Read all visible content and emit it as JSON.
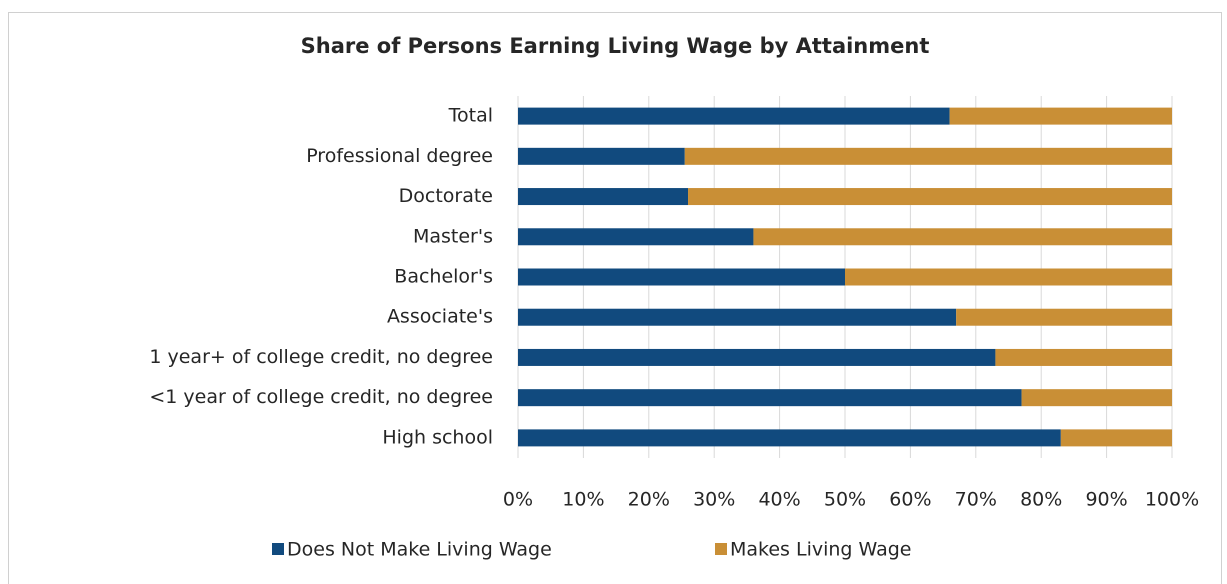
{
  "chart_data": {
    "type": "stacked_barh",
    "title": "Share of Persons Earning Living Wage by Attainment",
    "categories": [
      "Total",
      "Professional degree",
      "Doctorate",
      "Master's",
      "Bachelor's",
      "Associate's",
      "1 year+ of college credit, no degree",
      "<1 year of college credit, no degree",
      "High school"
    ],
    "series": [
      {
        "name": "Does Not Make Living Wage",
        "color": "#114a7e",
        "values": [
          66,
          25.5,
          26,
          36,
          50,
          67,
          73,
          77,
          83
        ]
      },
      {
        "name": "Makes Living Wage",
        "color": "#c98f36",
        "values": [
          34,
          74.5,
          74,
          64,
          50,
          33,
          27,
          23,
          17
        ]
      }
    ],
    "xlim": [
      0,
      100
    ],
    "xticks": [
      {
        "value": 0,
        "label": "0%"
      },
      {
        "value": 10,
        "label": "10%"
      },
      {
        "value": 20,
        "label": "20%"
      },
      {
        "value": 30,
        "label": "30%"
      },
      {
        "value": 40,
        "label": "40%"
      },
      {
        "value": 50,
        "label": "50%"
      },
      {
        "value": 60,
        "label": "60%"
      },
      {
        "value": 70,
        "label": "70%"
      },
      {
        "value": 80,
        "label": "80%"
      },
      {
        "value": 90,
        "label": "90%"
      },
      {
        "value": 100,
        "label": "100%"
      }
    ],
    "grid": true,
    "legend": "bottom"
  }
}
